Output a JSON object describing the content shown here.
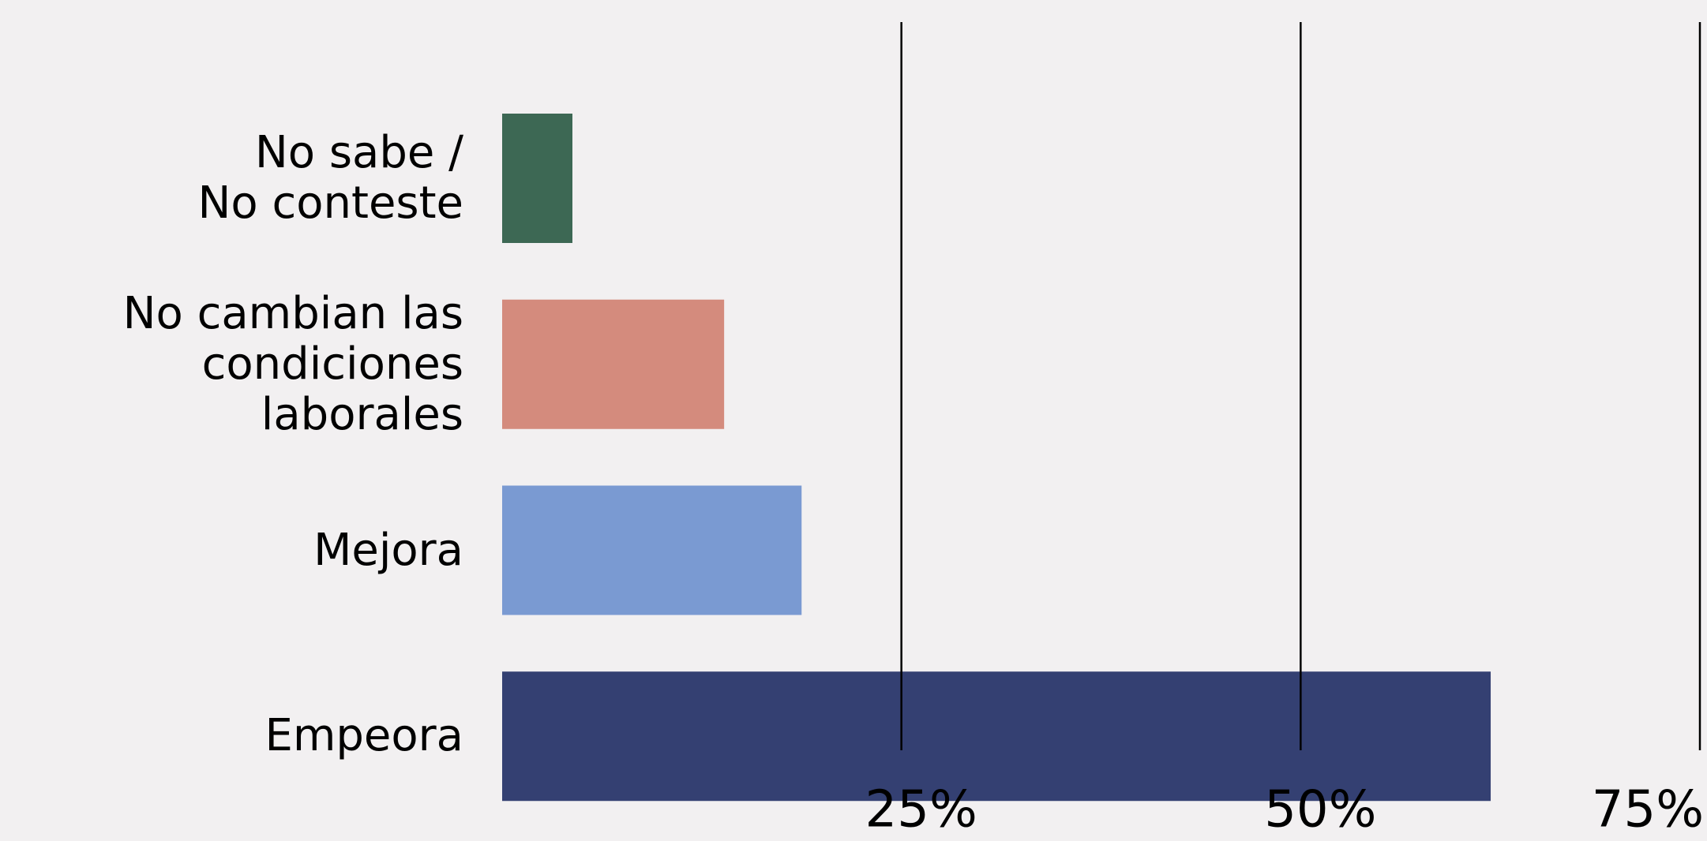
{
  "chart_data": {
    "type": "bar",
    "orientation": "horizontal",
    "categories": [
      "No sabe /\nNo conteste",
      "No cambian las\ncondiciones laborales",
      "Mejora",
      "Empeora"
    ],
    "values": [
      4.4,
      13.9,
      18.75,
      61.9
    ],
    "colors": [
      "#3d6854",
      "#d48b7d",
      "#7a9ad2",
      "#344072"
    ],
    "xlim": [
      0,
      75
    ],
    "xticks": [
      {
        "value": 25,
        "label": "25%"
      },
      {
        "value": 50,
        "label": "50%"
      },
      {
        "value": 75,
        "label": "75%"
      }
    ],
    "grid": true
  }
}
